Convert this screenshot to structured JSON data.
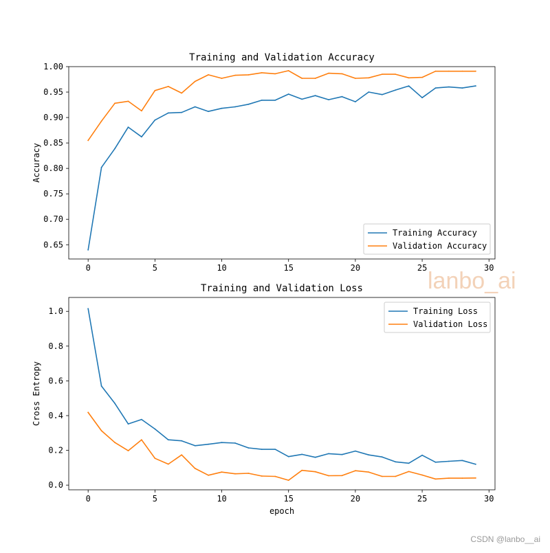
{
  "colors": {
    "training": "#1f77b4",
    "validation": "#ff7f0e",
    "watermark": "#f3d2b8",
    "footer": "#999999"
  },
  "watermark": "lanbo_ai",
  "footer": "CSDN @lanbo__ai",
  "chart_data": [
    {
      "type": "line",
      "title": "Training and Validation Accuracy",
      "xlabel": "",
      "ylabel": "Accuracy",
      "xlim": [
        -1.45,
        30.45
      ],
      "ylim": [
        0.622,
        1.0
      ],
      "xticks": [
        0,
        5,
        10,
        15,
        20,
        25,
        30
      ],
      "yticks": [
        0.65,
        0.7,
        0.75,
        0.8,
        0.85,
        0.9,
        0.95,
        1.0
      ],
      "ytick_labels": [
        "0.65",
        "0.70",
        "0.75",
        "0.80",
        "0.85",
        "0.90",
        "0.95",
        "1.00"
      ],
      "legend_position": "lower-right",
      "grid": false,
      "x": [
        0,
        1,
        2,
        3,
        4,
        5,
        6,
        7,
        8,
        9,
        10,
        11,
        12,
        13,
        14,
        15,
        16,
        17,
        18,
        19,
        20,
        21,
        22,
        23,
        24,
        25,
        26,
        27,
        28,
        29
      ],
      "series": [
        {
          "name": "Training Accuracy",
          "color_key": "training",
          "values": [
            0.64,
            0.802,
            0.839,
            0.881,
            0.862,
            0.895,
            0.909,
            0.91,
            0.921,
            0.912,
            0.918,
            0.921,
            0.926,
            0.934,
            0.934,
            0.946,
            0.936,
            0.943,
            0.935,
            0.941,
            0.931,
            0.95,
            0.945,
            0.954,
            0.962,
            0.939,
            0.958,
            0.96,
            0.958,
            0.962
          ]
        },
        {
          "name": "Validation Accuracy",
          "color_key": "validation",
          "values": [
            0.855,
            0.893,
            0.928,
            0.932,
            0.913,
            0.953,
            0.961,
            0.948,
            0.971,
            0.984,
            0.977,
            0.983,
            0.984,
            0.988,
            0.986,
            0.992,
            0.977,
            0.977,
            0.987,
            0.986,
            0.977,
            0.978,
            0.985,
            0.985,
            0.978,
            0.979,
            0.991,
            0.991,
            0.991,
            0.991
          ]
        }
      ]
    },
    {
      "type": "line",
      "title": "Training and Validation Loss",
      "xlabel": "epoch",
      "ylabel": "Cross Entropy",
      "xlim": [
        -1.45,
        30.45
      ],
      "ylim": [
        -0.027,
        1.08
      ],
      "xticks": [
        0,
        5,
        10,
        15,
        20,
        25,
        30
      ],
      "yticks": [
        0.0,
        0.2,
        0.4,
        0.6,
        0.8,
        1.0
      ],
      "ytick_labels": [
        "0.0",
        "0.2",
        "0.4",
        "0.6",
        "0.8",
        "1.0"
      ],
      "legend_position": "upper-right",
      "grid": false,
      "x": [
        0,
        1,
        2,
        3,
        4,
        5,
        6,
        7,
        8,
        9,
        10,
        11,
        12,
        13,
        14,
        15,
        16,
        17,
        18,
        19,
        20,
        21,
        22,
        23,
        24,
        25,
        26,
        27,
        28,
        29
      ],
      "series": [
        {
          "name": "Training Loss",
          "color_key": "training",
          "values": [
            1.015,
            0.57,
            0.47,
            0.352,
            0.378,
            0.323,
            0.261,
            0.255,
            0.227,
            0.235,
            0.245,
            0.242,
            0.214,
            0.206,
            0.206,
            0.164,
            0.177,
            0.16,
            0.181,
            0.176,
            0.196,
            0.174,
            0.162,
            0.134,
            0.126,
            0.172,
            0.132,
            0.137,
            0.142,
            0.12
          ]
        },
        {
          "name": "Validation Loss",
          "color_key": "validation",
          "values": [
            0.418,
            0.313,
            0.245,
            0.198,
            0.261,
            0.154,
            0.121,
            0.174,
            0.096,
            0.057,
            0.075,
            0.065,
            0.068,
            0.052,
            0.05,
            0.028,
            0.085,
            0.077,
            0.054,
            0.055,
            0.083,
            0.075,
            0.05,
            0.05,
            0.078,
            0.058,
            0.035,
            0.04,
            0.04,
            0.041
          ]
        }
      ]
    }
  ]
}
